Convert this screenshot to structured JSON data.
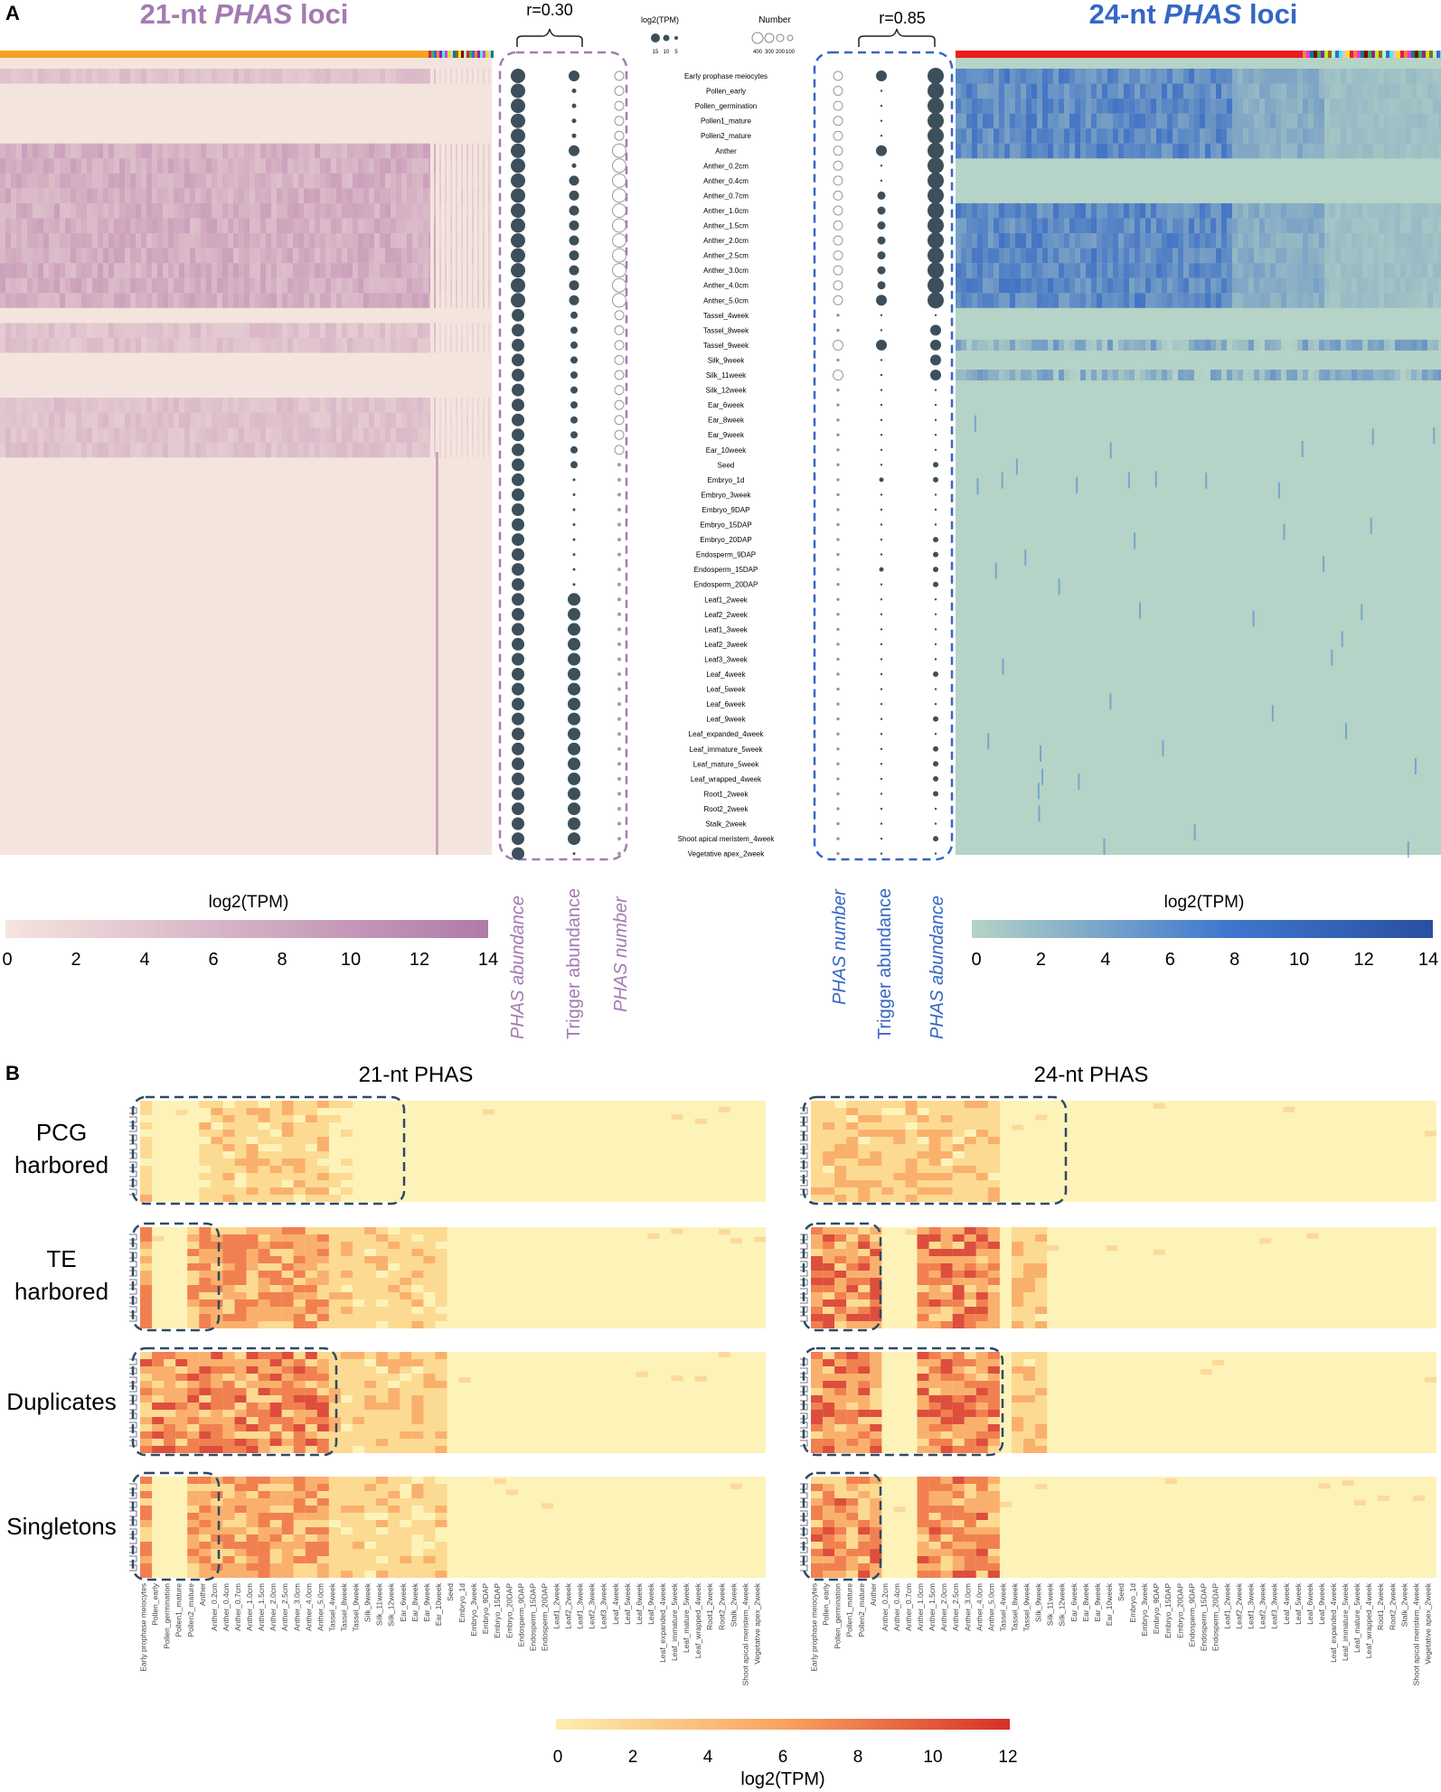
{
  "panel_a": {
    "label": "A",
    "title_21": {
      "prefix": "21-nt ",
      "italic": "PHAS",
      "suffix": " loci"
    },
    "title_24": {
      "prefix": "24-nt ",
      "italic": "PHAS",
      "suffix": " loci"
    },
    "corr_21": "r=0.30",
    "corr_24": "r=0.85",
    "size_legend": {
      "log_title": "log2(TPM)",
      "log_values": [
        "15",
        "10",
        "5"
      ],
      "number_title": "Number",
      "number_values": [
        "400",
        "300",
        "200",
        "100"
      ]
    },
    "col_labels_left": [
      "PHAS abundance",
      "Trigger abundance",
      "PHAS number"
    ],
    "col_labels_right": [
      "PHAS number",
      "Trigger abundance",
      "PHAS abundance"
    ],
    "tissues": [
      "Early prophase meiocytes",
      "Pollen_early",
      "Pollen_germination",
      "Pollen1_mature",
      "Pollen2_mature",
      "Anther",
      "Anther_0.2cm",
      "Anther_0.4cm",
      "Anther_0.7cm",
      "Anther_1.0cm",
      "Anther_1.5cm",
      "Anther_2.0cm",
      "Anther_2.5cm",
      "Anther_3.0cm",
      "Anther_4.0cm",
      "Anther_5.0cm",
      "Tassel_4week",
      "Tassel_8week",
      "Tassel_9week",
      "Silk_9week",
      "Silk_11week",
      "Silk_12week",
      "Ear_6week",
      "Ear_8week",
      "Ear_9week",
      "Ear_10week",
      "Seed",
      "Embryo_1d",
      "Embryo_3week",
      "Embryo_9DAP",
      "Embryo_15DAP",
      "Embryo_20DAP",
      "Endosperm_9DAP",
      "Endosperm_15DAP",
      "Endosperm_20DAP",
      "Leaf1_2week",
      "Leaf2_2week",
      "Leaf1_3week",
      "Leaf2_3week",
      "Leaf3_3week",
      "Leaf_4week",
      "Leaf_5week",
      "Leaf_6week",
      "Leaf_9week",
      "Leaf_expanded_4week",
      "Leaf_immature_5week",
      "Leaf_mature_5week",
      "Leaf_wrapped_4week",
      "Root1_2week",
      "Root2_2week",
      "Stalk_2week",
      "Shoot apical meristem_4week",
      "Vegetative apex_2week"
    ],
    "colorbar_21": {
      "title": "log2(TPM)",
      "ticks": [
        "0",
        "2",
        "4",
        "6",
        "8",
        "10",
        "12",
        "14"
      ],
      "low": "#f5e4df",
      "high": "#b07aa8"
    },
    "colorbar_24": {
      "title": "log2(TPM)",
      "ticks": [
        "0",
        "2",
        "4",
        "6",
        "8",
        "10",
        "12",
        "14"
      ],
      "low": "#b5d3c6",
      "high": "#2a4fa0"
    }
  },
  "panel_b": {
    "label": "B",
    "title_21": "21-nt PHAS",
    "title_24": "24-nt PHAS",
    "rows": [
      "PCG harbored",
      "TE harbored",
      "Duplicates",
      "Singletons"
    ],
    "tissues": [
      "Early prophase meiocytes",
      "Pollen_early",
      "Pollen_germination",
      "Pollen1_mature",
      "Pollen2_mature",
      "Anther",
      "Anther_0.2cm",
      "Anther_0.4cm",
      "Anther_0.7cm",
      "Anther_1.0cm",
      "Anther_1.5cm",
      "Anther_2.0cm",
      "Anther_2.5cm",
      "Anther_3.0cm",
      "Anther_4.0cm",
      "Anther_5.0cm",
      "Tassel_4week",
      "Tassel_8week",
      "Tassel_9week",
      "Silk_9week",
      "Silk_11week",
      "Silk_12week",
      "Ear_6week",
      "Ear_8week",
      "Ear_9week",
      "Ear_10week",
      "Seed",
      "Embryo_1d",
      "Embryo_3week",
      "Embryo_9DAP",
      "Embryo_15DAP",
      "Embryo_20DAP",
      "Endosperm_9DAP",
      "Endosperm_15DAP",
      "Endosperm_20DAP",
      "Leaf1_2week",
      "Leaf2_2week",
      "Leaf1_3week",
      "Leaf2_3week",
      "Leaf3_3week",
      "Leaf_4week",
      "Leaf_5week",
      "Leaf_6week",
      "Leaf_9week",
      "Leaf_expanded_4week",
      "Leaf_immature_5week",
      "Leaf_mature_5week",
      "Leaf_wrapped_4week",
      "Root1_2week",
      "Root2_2week",
      "Stalk_2week",
      "Shoot apical meristem_4week",
      "Vegetative apex_2week"
    ],
    "colorbar": {
      "title": "log2(TPM)",
      "ticks": [
        "0",
        "2",
        "4",
        "6",
        "8",
        "10",
        "12"
      ],
      "low": "#fdeeb0",
      "high": "#d73027"
    }
  },
  "chart_data": [
    {
      "type": "heatmap",
      "title": "21-nt PHAS loci",
      "y_categories": "tissues (53)",
      "value_label": "log2(TPM)",
      "range": [
        0,
        14
      ],
      "correlation_r": 0.3,
      "bubble_columns": [
        "PHAS abundance",
        "Trigger abundance",
        "PHAS number"
      ]
    },
    {
      "type": "heatmap",
      "title": "24-nt PHAS loci",
      "y_categories": "tissues (53)",
      "value_label": "log2(TPM)",
      "range": [
        0,
        14
      ],
      "correlation_r": 0.85,
      "bubble_columns": [
        "PHAS number",
        "Trigger abundance",
        "PHAS abundance"
      ]
    },
    {
      "type": "heatmap",
      "title": "21-nt PHAS",
      "row_groups": [
        "PCG harbored",
        "TE harbored",
        "Duplicates",
        "Singletons"
      ],
      "value_label": "log2(TPM)",
      "range": [
        0,
        12
      ]
    },
    {
      "type": "heatmap",
      "title": "24-nt PHAS",
      "row_groups": [
        "PCG harbored",
        "TE harbored",
        "Duplicates",
        "Singletons"
      ],
      "value_label": "log2(TPM)",
      "range": [
        0,
        12
      ]
    }
  ]
}
